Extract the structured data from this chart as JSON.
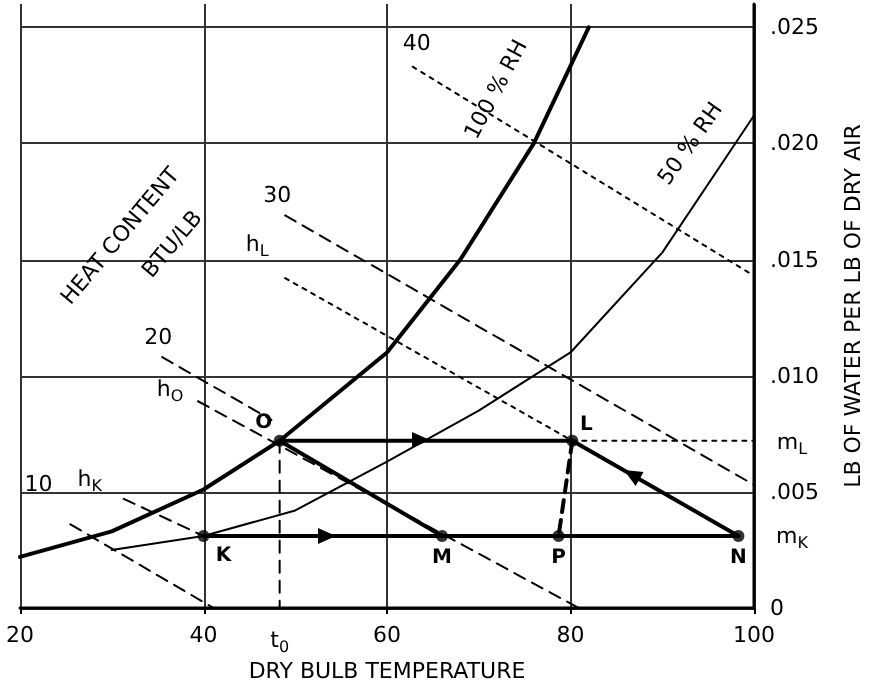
{
  "chart_data": {
    "type": "line",
    "xlabel": "DRY BULB TEMPERATURE",
    "ylabel": "LB OF WATER PER LB OF DRY AIR",
    "xlim": [
      20,
      100
    ],
    "ylim": [
      0,
      0.026
    ],
    "xticks": [
      20,
      40,
      60,
      80,
      100
    ],
    "yticks": [
      0,
      {
        "value": 0.005,
        "label": ".005"
      },
      {
        "value": 0.01,
        "label": ".010"
      },
      {
        "value": 0.015,
        "label": ".015"
      },
      {
        "value": 0.02,
        "label": ".020"
      },
      {
        "value": 0.025,
        "label": ".025"
      }
    ],
    "grid": true,
    "series": [
      {
        "name": "100 % RH",
        "color": "#000000",
        "x": [
          20,
          30,
          40,
          48.3,
          60,
          68,
          76,
          82
        ],
        "values": [
          0.0022,
          0.0033,
          0.0051,
          0.0072,
          0.011,
          0.015,
          0.02,
          0.025
        ]
      },
      {
        "name": "50 % RH",
        "color": "#000000",
        "x": [
          30,
          40,
          50,
          60,
          70,
          80,
          90,
          100
        ],
        "values": [
          0.0025,
          0.0031,
          0.0042,
          0.0063,
          0.0085,
          0.011,
          0.0153,
          0.0212
        ]
      },
      {
        "name": "10",
        "color": "#000000",
        "line_style": "dashed",
        "x": [
          25.5,
          41.1
        ],
        "values": [
          0.0036,
          0
        ]
      },
      {
        "name": "20",
        "color": "#000000",
        "line_style": "dashed",
        "x": [
          35.5,
          47.4
        ],
        "values": [
          0.0108,
          0.0081
        ]
      },
      {
        "name": "30",
        "color": "#000000",
        "line_style": "dashed",
        "x": [
          48.9,
          100
        ],
        "values": [
          0.0169,
          0.0053
        ]
      },
      {
        "name": "40",
        "color": "#000000",
        "line_style": "dotted",
        "x": [
          62.8,
          100
        ],
        "values": [
          0.0233,
          0.0143
        ]
      },
      {
        "name": "h$_{K}$",
        "color": "#000000",
        "line_style": "dashed",
        "x": [
          31.3,
          40
        ],
        "values": [
          0.0047,
          0.0031
        ]
      },
      {
        "name": "h$_{O}$",
        "color": "#000000",
        "line_style": "dashed",
        "x": [
          39.4,
          80.9
        ],
        "values": [
          0.0089,
          0
        ]
      },
      {
        "name": "h$_{L}$",
        "color": "#000000",
        "line_style": "dotted",
        "x": [
          48.9,
          80.2
        ],
        "values": [
          0.0142,
          0.0072
        ]
      },
      {
        "color": "#000000",
        "x": [
          40,
          98.3
        ],
        "values": [
          0.0031,
          0.0031
        ]
      },
      {
        "color": "#000000",
        "x": [
          48.3,
          80.2
        ],
        "values": [
          0.0072,
          0.0072
        ]
      },
      {
        "color": "#000000",
        "x": [
          98.3,
          80.2
        ],
        "values": [
          0.0031,
          0.0072
        ]
      },
      {
        "color": "#000000",
        "x": [
          48.3,
          66
        ],
        "values": [
          0.0072,
          0.0031
        ]
      },
      {
        "color": "#000000",
        "line_style": "dashed",
        "x": [
          80.2,
          78.7
        ],
        "values": [
          0.0072,
          0.0031
        ]
      },
      {
        "color": "#000000",
        "line_style": "dashed",
        "x": [
          48.3,
          48.3
        ],
        "values": [
          0.0072,
          0
        ]
      },
      {
        "color": "#000000",
        "line_style": "dotted",
        "x": [
          80.2,
          100
        ],
        "values": [
          0.0072,
          0.0072
        ]
      },
      {
        "type": "scatter",
        "marker": "circle",
        "color": "#000000",
        "x": [
          48.3,
          40,
          66,
          78.7,
          80.2,
          98.3
        ],
        "values": [
          0.0072,
          0.0031,
          0.0031,
          0.0031,
          0.0072,
          0.0031
        ]
      }
    ],
    "annotations": [
      "HEAT CONTENT",
      "BTU/LB",
      {
        "text": "t$_{0}$",
        "x": 48.3,
        "y": 0
      },
      "m$_{L}$",
      "m$_{K}$",
      {
        "text": "O",
        "x": 48.3,
        "y": 0.0072
      },
      {
        "text": "K",
        "x": 40,
        "y": 0.0031
      },
      {
        "text": "M",
        "x": 66,
        "y": 0.0031
      },
      {
        "text": "P",
        "x": 78.7,
        "y": 0.0031
      },
      {
        "text": "L",
        "x": 80.2,
        "y": 0.0072
      },
      {
        "text": "N",
        "x": 98.3,
        "y": 0.0031
      }
    ]
  }
}
